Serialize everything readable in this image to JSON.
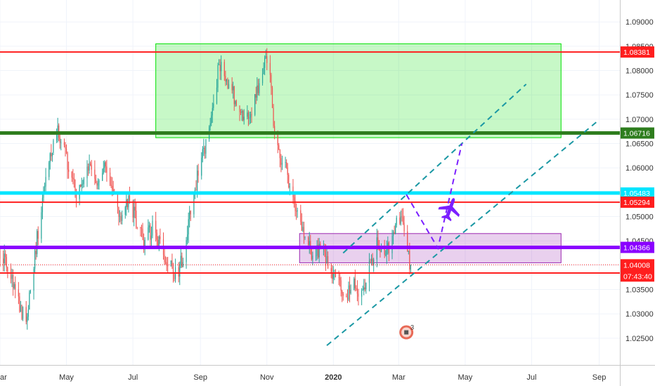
{
  "chart_data": {
    "type": "candlestick",
    "title": "",
    "xlabel": "",
    "ylabel": "",
    "x_range": [
      "2019-03-01",
      "2020-09-20"
    ],
    "ylim": [
      1.0195,
      1.0945
    ],
    "x_tick_labels": [
      {
        "date": "2019-03-01",
        "label": "ar"
      },
      {
        "date": "2019-05-01",
        "label": "May"
      },
      {
        "date": "2019-07-01",
        "label": "Jul"
      },
      {
        "date": "2019-09-01",
        "label": "Sep"
      },
      {
        "date": "2019-11-01",
        "label": "Nov"
      },
      {
        "date": "2020-01-01",
        "label": "2020"
      },
      {
        "date": "2020-03-01",
        "label": "Mar"
      },
      {
        "date": "2020-05-01",
        "label": "May"
      },
      {
        "date": "2020-07-01",
        "label": "Jul"
      },
      {
        "date": "2020-09-01",
        "label": "Sep"
      }
    ],
    "y_tick_labels": [
      "1.02500",
      "1.03000",
      "1.03500",
      "1.04000",
      "1.04500",
      "1.05000",
      "1.05500",
      "1.06000",
      "1.06500",
      "1.07000",
      "1.07500",
      "1.08000",
      "1.08500",
      "1.09000"
    ],
    "y_ticks": [
      1.025,
      1.03,
      1.035,
      1.04,
      1.045,
      1.05,
      1.055,
      1.06,
      1.065,
      1.07,
      1.075,
      1.08,
      1.085,
      1.09
    ],
    "price_path": [
      [
        "2019-03-01",
        1.043
      ],
      [
        "2019-03-12",
        1.037
      ],
      [
        "2019-03-20",
        1.031
      ],
      [
        "2019-03-25",
        1.029
      ],
      [
        "2019-03-31",
        1.039
      ],
      [
        "2019-04-08",
        1.052
      ],
      [
        "2019-04-15",
        1.061
      ],
      [
        "2019-04-22",
        1.068
      ],
      [
        "2019-04-28",
        1.065
      ],
      [
        "2019-05-05",
        1.058
      ],
      [
        "2019-05-12",
        1.054
      ],
      [
        "2019-05-20",
        1.061
      ],
      [
        "2019-05-28",
        1.057
      ],
      [
        "2019-06-05",
        1.06
      ],
      [
        "2019-06-12",
        1.056
      ],
      [
        "2019-06-20",
        1.05
      ],
      [
        "2019-06-28",
        1.053
      ],
      [
        "2019-07-04",
        1.049
      ],
      [
        "2019-07-12",
        1.045
      ],
      [
        "2019-07-20",
        1.048
      ],
      [
        "2019-07-28",
        1.043
      ],
      [
        "2019-08-04",
        1.04
      ],
      [
        "2019-08-10",
        1.038
      ],
      [
        "2019-08-16",
        1.042
      ],
      [
        "2019-08-22",
        1.05
      ],
      [
        "2019-08-30",
        1.059
      ],
      [
        "2019-09-07",
        1.066
      ],
      [
        "2019-09-14",
        1.074
      ],
      [
        "2019-09-18",
        1.082
      ],
      [
        "2019-09-24",
        1.079
      ],
      [
        "2019-09-30",
        1.076
      ],
      [
        "2019-10-06",
        1.072
      ],
      [
        "2019-10-12",
        1.069
      ],
      [
        "2019-10-18",
        1.072
      ],
      [
        "2019-10-24",
        1.077
      ],
      [
        "2019-10-31",
        1.082
      ],
      [
        "2019-11-04",
        1.08
      ],
      [
        "2019-11-08",
        1.067
      ],
      [
        "2019-11-14",
        1.062
      ],
      [
        "2019-11-22",
        1.057
      ],
      [
        "2019-11-30",
        1.05
      ],
      [
        "2019-12-06",
        1.045
      ],
      [
        "2019-12-14",
        1.042
      ],
      [
        "2019-12-22",
        1.044
      ],
      [
        "2019-12-30",
        1.039
      ],
      [
        "2020-01-06",
        1.038
      ],
      [
        "2020-01-12",
        1.033
      ],
      [
        "2020-01-18",
        1.037
      ],
      [
        "2020-01-24",
        1.033
      ],
      [
        "2020-01-30",
        1.036
      ],
      [
        "2020-02-05",
        1.041
      ],
      [
        "2020-02-11",
        1.045
      ],
      [
        "2020-02-17",
        1.042
      ],
      [
        "2020-02-23",
        1.045
      ],
      [
        "2020-02-29",
        1.049
      ],
      [
        "2020-03-05",
        1.048
      ],
      [
        "2020-03-09",
        1.042
      ],
      [
        "2020-03-12",
        1.0401
      ]
    ],
    "horizontal_levels": [
      {
        "value": 1.08381,
        "label": "1.08381",
        "color": "#ff1e1e"
      },
      {
        "value": 1.06716,
        "label": "1.06716",
        "color": "#2e7d1e"
      },
      {
        "value": 1.05483,
        "label": "1.05483",
        "color": "#00e5ff"
      },
      {
        "value": 1.05294,
        "label": "1.05294",
        "color": "#ff1e1e"
      },
      {
        "value": 1.04366,
        "label": "1.04366",
        "color": "#8a00ff"
      },
      {
        "value": 1.0384,
        "label": "1.03840",
        "color": "#ff1e1e"
      }
    ],
    "current_price": {
      "value": 1.04008,
      "label": "1.04008",
      "countdown": "07:43:40",
      "color": "#ff1e1e"
    },
    "zones": [
      {
        "x0": "2019-07-22",
        "x1": "2020-07-28",
        "y0": 1.0662,
        "y1": 1.0855,
        "color": "#00e000"
      },
      {
        "x0": "2019-12-01",
        "x1": "2020-07-28",
        "y0": 1.0405,
        "y1": 1.0465,
        "color": "#9c27b0"
      }
    ],
    "trend_lines": [
      {
        "from": [
          "2019-12-26",
          1.0235
        ],
        "to": [
          "2020-08-30",
          1.0695
        ],
        "color": "#1b98a4",
        "style": "dashed"
      },
      {
        "from": [
          "2020-01-10",
          1.0425
        ],
        "to": [
          "2020-06-26",
          1.0772
        ],
        "color": "#1b98a4",
        "style": "dashed"
      }
    ],
    "projection_path": [
      [
        "2020-03-08",
        1.0545
      ],
      [
        "2020-04-06",
        1.0435
      ],
      [
        "2020-04-28",
        1.065
      ]
    ],
    "projection_color": "#7b1fff",
    "annotation_icon": "airplane-icon",
    "annotation_position": [
      "2020-04-17",
      1.0515
    ],
    "badge_position": [
      "2020-03-08",
      1.0262
    ],
    "badge_count": "3",
    "colors": {
      "up": "#26a69a",
      "down": "#ef5350",
      "grid": "#f0f3fa",
      "axis_text": "#333333"
    }
  }
}
